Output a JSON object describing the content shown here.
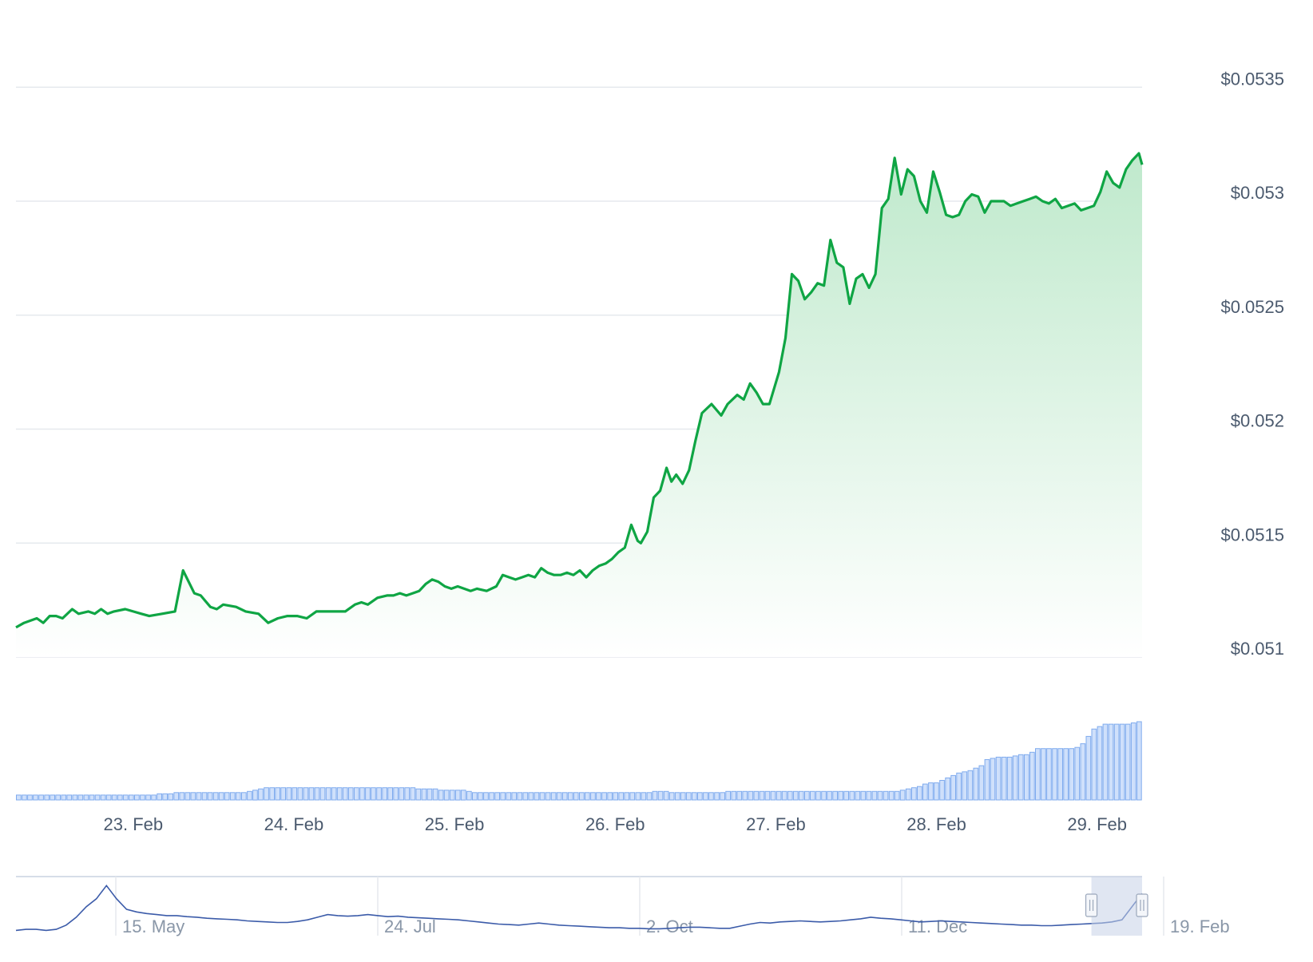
{
  "colors": {
    "price_line": "#0fa544",
    "area_top": "#bfe9cc",
    "area_bottom": "#ffffff",
    "volume_fill": "#cfe0fb",
    "volume_stroke": "#7fabee",
    "grid": "#e6e9ee",
    "tick_text": "#4b5a6e",
    "navigator_line": "#3b5ba9",
    "navigator_mask": "#c7d2e8"
  },
  "chart_data": {
    "type": "line",
    "title": "",
    "xlabel": "",
    "ylabel": "",
    "currency_prefix": "$",
    "ylim": [
      0.051,
      0.05355
    ],
    "y_ticks": [
      "$0.051",
      "$0.0515",
      "$0.052",
      "$0.0525",
      "$0.053",
      "$0.0535"
    ],
    "x_ticks": [
      "23. Feb",
      "24. Feb",
      "25. Feb",
      "26. Feb",
      "27. Feb",
      "28. Feb",
      "29. Feb"
    ],
    "x_range_days": [
      22.27,
      29.28
    ],
    "grid": true,
    "legend": "none",
    "series": [
      {
        "values": [
          [
            22.27,
            0.05113
          ],
          [
            22.32,
            0.05115
          ],
          [
            22.4,
            0.05117
          ],
          [
            22.44,
            0.05115
          ],
          [
            22.48,
            0.05118
          ],
          [
            22.52,
            0.05118
          ],
          [
            22.56,
            0.05117
          ],
          [
            22.62,
            0.05121
          ],
          [
            22.66,
            0.05119
          ],
          [
            22.72,
            0.0512
          ],
          [
            22.76,
            0.05119
          ],
          [
            22.8,
            0.05121
          ],
          [
            22.84,
            0.05119
          ],
          [
            22.88,
            0.0512
          ],
          [
            22.95,
            0.05121
          ],
          [
            23.0,
            0.0512
          ],
          [
            23.05,
            0.05119
          ],
          [
            23.1,
            0.05118
          ],
          [
            23.18,
            0.05119
          ],
          [
            23.26,
            0.0512
          ],
          [
            23.31,
            0.05138
          ],
          [
            23.38,
            0.05128
          ],
          [
            23.42,
            0.05127
          ],
          [
            23.48,
            0.05122
          ],
          [
            23.52,
            0.05121
          ],
          [
            23.56,
            0.05123
          ],
          [
            23.64,
            0.05122
          ],
          [
            23.7,
            0.0512
          ],
          [
            23.78,
            0.05119
          ],
          [
            23.84,
            0.05115
          ],
          [
            23.9,
            0.05117
          ],
          [
            23.96,
            0.05118
          ],
          [
            24.02,
            0.05118
          ],
          [
            24.08,
            0.05117
          ],
          [
            24.14,
            0.0512
          ],
          [
            24.25,
            0.0512
          ],
          [
            24.32,
            0.0512
          ],
          [
            24.38,
            0.05123
          ],
          [
            24.42,
            0.05124
          ],
          [
            24.46,
            0.05123
          ],
          [
            24.52,
            0.05126
          ],
          [
            24.58,
            0.05127
          ],
          [
            24.62,
            0.05127
          ],
          [
            24.66,
            0.05128
          ],
          [
            24.7,
            0.05127
          ],
          [
            24.74,
            0.05128
          ],
          [
            24.78,
            0.05129
          ],
          [
            24.82,
            0.05132
          ],
          [
            24.86,
            0.05134
          ],
          [
            24.9,
            0.05133
          ],
          [
            24.94,
            0.05131
          ],
          [
            24.98,
            0.0513
          ],
          [
            25.02,
            0.05131
          ],
          [
            25.06,
            0.0513
          ],
          [
            25.1,
            0.05129
          ],
          [
            25.14,
            0.0513
          ],
          [
            25.2,
            0.05129
          ],
          [
            25.26,
            0.05131
          ],
          [
            25.3,
            0.05136
          ],
          [
            25.34,
            0.05135
          ],
          [
            25.38,
            0.05134
          ],
          [
            25.42,
            0.05135
          ],
          [
            25.46,
            0.05136
          ],
          [
            25.5,
            0.05135
          ],
          [
            25.54,
            0.05139
          ],
          [
            25.58,
            0.05137
          ],
          [
            25.62,
            0.05136
          ],
          [
            25.66,
            0.05136
          ],
          [
            25.7,
            0.05137
          ],
          [
            25.74,
            0.05136
          ],
          [
            25.78,
            0.05138
          ],
          [
            25.82,
            0.05135
          ],
          [
            25.86,
            0.05138
          ],
          [
            25.9,
            0.0514
          ],
          [
            25.94,
            0.05141
          ],
          [
            25.98,
            0.05143
          ],
          [
            26.02,
            0.05146
          ],
          [
            26.06,
            0.05148
          ],
          [
            26.1,
            0.05158
          ],
          [
            26.14,
            0.05151
          ],
          [
            26.16,
            0.0515
          ],
          [
            26.2,
            0.05155
          ],
          [
            26.24,
            0.0517
          ],
          [
            26.28,
            0.05173
          ],
          [
            26.32,
            0.05183
          ],
          [
            26.35,
            0.05177
          ],
          [
            26.38,
            0.0518
          ],
          [
            26.42,
            0.05176
          ],
          [
            26.46,
            0.05182
          ],
          [
            26.5,
            0.05195
          ],
          [
            26.54,
            0.05207
          ],
          [
            26.6,
            0.05211
          ],
          [
            26.66,
            0.05206
          ],
          [
            26.7,
            0.05211
          ],
          [
            26.76,
            0.05215
          ],
          [
            26.8,
            0.05213
          ],
          [
            26.84,
            0.0522
          ],
          [
            26.88,
            0.05216
          ],
          [
            26.92,
            0.05211
          ],
          [
            26.96,
            0.05211
          ],
          [
            27.02,
            0.05225
          ],
          [
            27.06,
            0.0524
          ],
          [
            27.1,
            0.05268
          ],
          [
            27.14,
            0.05265
          ],
          [
            27.18,
            0.05257
          ],
          [
            27.22,
            0.0526
          ],
          [
            27.26,
            0.05264
          ],
          [
            27.3,
            0.05263
          ],
          [
            27.34,
            0.05283
          ],
          [
            27.38,
            0.05273
          ],
          [
            27.42,
            0.05271
          ],
          [
            27.46,
            0.05255
          ],
          [
            27.5,
            0.05266
          ],
          [
            27.54,
            0.05268
          ],
          [
            27.58,
            0.05262
          ],
          [
            27.62,
            0.05268
          ],
          [
            27.66,
            0.05297
          ],
          [
            27.7,
            0.05301
          ],
          [
            27.74,
            0.05319
          ],
          [
            27.78,
            0.05303
          ],
          [
            27.82,
            0.05314
          ],
          [
            27.86,
            0.05311
          ],
          [
            27.9,
            0.053
          ],
          [
            27.94,
            0.05295
          ],
          [
            27.98,
            0.05313
          ],
          [
            28.02,
            0.05304
          ],
          [
            28.06,
            0.05294
          ],
          [
            28.1,
            0.05293
          ],
          [
            28.14,
            0.05294
          ],
          [
            28.18,
            0.053
          ],
          [
            28.22,
            0.05303
          ],
          [
            28.26,
            0.05302
          ],
          [
            28.3,
            0.05295
          ],
          [
            28.34,
            0.053
          ],
          [
            28.38,
            0.053
          ],
          [
            28.42,
            0.053
          ],
          [
            28.46,
            0.05298
          ],
          [
            28.5,
            0.05299
          ],
          [
            28.54,
            0.053
          ],
          [
            28.58,
            0.05301
          ],
          [
            28.62,
            0.05302
          ],
          [
            28.66,
            0.053
          ],
          [
            28.7,
            0.05299
          ],
          [
            28.74,
            0.05301
          ],
          [
            28.78,
            0.05297
          ],
          [
            28.82,
            0.05298
          ],
          [
            28.86,
            0.05299
          ],
          [
            28.9,
            0.05296
          ],
          [
            28.94,
            0.05297
          ],
          [
            28.98,
            0.05298
          ],
          [
            29.02,
            0.05304
          ],
          [
            29.06,
            0.05313
          ],
          [
            29.1,
            0.05308
          ],
          [
            29.14,
            0.05306
          ],
          [
            29.18,
            0.05314
          ],
          [
            29.22,
            0.05318
          ],
          [
            29.26,
            0.05321
          ],
          [
            29.28,
            0.05316
          ]
        ]
      }
    ],
    "volume": [
      0.8,
      0.8,
      0.8,
      0.8,
      0.8,
      0.8,
      0.8,
      0.8,
      0.8,
      0.8,
      0.8,
      0.8,
      0.8,
      0.8,
      0.8,
      0.8,
      0.8,
      0.8,
      0.8,
      0.8,
      0.8,
      0.8,
      0.8,
      0.8,
      0.8,
      1.0,
      1.0,
      1.0,
      1.2,
      1.2,
      1.2,
      1.2,
      1.2,
      1.2,
      1.2,
      1.2,
      1.2,
      1.2,
      1.2,
      1.2,
      1.2,
      1.4,
      1.6,
      1.8,
      2.0,
      2.0,
      2.0,
      2.0,
      2.0,
      2.0,
      2.0,
      2.0,
      2.0,
      2.0,
      2.0,
      2.0,
      2.0,
      2.0,
      2.0,
      2.0,
      2.0,
      2.0,
      2.0,
      2.0,
      2.0,
      2.0,
      2.0,
      2.0,
      2.0,
      2.0,
      2.0,
      1.8,
      1.8,
      1.8,
      1.8,
      1.6,
      1.6,
      1.6,
      1.6,
      1.6,
      1.4,
      1.2,
      1.2,
      1.2,
      1.2,
      1.2,
      1.2,
      1.2,
      1.2,
      1.2,
      1.2,
      1.2,
      1.2,
      1.2,
      1.2,
      1.2,
      1.2,
      1.2,
      1.2,
      1.2,
      1.2,
      1.2,
      1.2,
      1.2,
      1.2,
      1.2,
      1.2,
      1.2,
      1.2,
      1.2,
      1.2,
      1.2,
      1.2,
      1.4,
      1.4,
      1.4,
      1.2,
      1.2,
      1.2,
      1.2,
      1.2,
      1.2,
      1.2,
      1.2,
      1.2,
      1.2,
      1.4,
      1.4,
      1.4,
      1.4,
      1.4,
      1.4,
      1.4,
      1.4,
      1.4,
      1.4,
      1.4,
      1.4,
      1.4,
      1.4,
      1.4,
      1.4,
      1.4,
      1.4,
      1.4,
      1.4,
      1.4,
      1.4,
      1.4,
      1.4,
      1.4,
      1.4,
      1.4,
      1.4,
      1.4,
      1.4,
      1.4,
      1.6,
      1.8,
      2.0,
      2.2,
      2.6,
      2.8,
      2.8,
      3.2,
      3.6,
      4.0,
      4.4,
      4.6,
      4.8,
      5.2,
      5.6,
      6.6,
      6.8,
      7.0,
      7.0,
      7.0,
      7.2,
      7.4,
      7.4,
      7.8,
      8.4,
      8.4,
      8.4,
      8.4,
      8.4,
      8.4,
      8.4,
      8.6,
      9.2,
      10.4,
      11.6,
      12.0,
      12.4,
      12.4,
      12.4,
      12.4,
      12.4,
      12.6,
      12.8
    ],
    "navigator": {
      "type": "line",
      "x_ticks": [
        "15. May",
        "24. Jul",
        "2. Oct",
        "11. Dec",
        "19. Feb"
      ],
      "values": [
        0.1,
        0.12,
        0.12,
        0.1,
        0.12,
        0.2,
        0.35,
        0.55,
        0.7,
        0.95,
        0.7,
        0.5,
        0.45,
        0.42,
        0.4,
        0.38,
        0.38,
        0.36,
        0.35,
        0.33,
        0.32,
        0.31,
        0.3,
        0.28,
        0.27,
        0.26,
        0.25,
        0.25,
        0.27,
        0.3,
        0.35,
        0.4,
        0.38,
        0.37,
        0.38,
        0.4,
        0.38,
        0.36,
        0.37,
        0.35,
        0.34,
        0.33,
        0.32,
        0.31,
        0.3,
        0.28,
        0.26,
        0.24,
        0.22,
        0.21,
        0.2,
        0.22,
        0.24,
        0.22,
        0.2,
        0.19,
        0.18,
        0.17,
        0.16,
        0.15,
        0.15,
        0.14,
        0.14,
        0.13,
        0.13,
        0.14,
        0.15,
        0.16,
        0.16,
        0.15,
        0.14,
        0.14,
        0.18,
        0.22,
        0.25,
        0.24,
        0.26,
        0.27,
        0.28,
        0.27,
        0.26,
        0.27,
        0.28,
        0.3,
        0.32,
        0.35,
        0.33,
        0.32,
        0.3,
        0.28,
        0.26,
        0.27,
        0.28,
        0.27,
        0.26,
        0.25,
        0.24,
        0.23,
        0.22,
        0.21,
        0.2,
        0.2,
        0.19,
        0.19,
        0.2,
        0.21,
        0.22,
        0.23,
        0.24,
        0.26,
        0.3,
        0.55,
        0.8
      ],
      "selected_range_start": 0.955
    }
  }
}
